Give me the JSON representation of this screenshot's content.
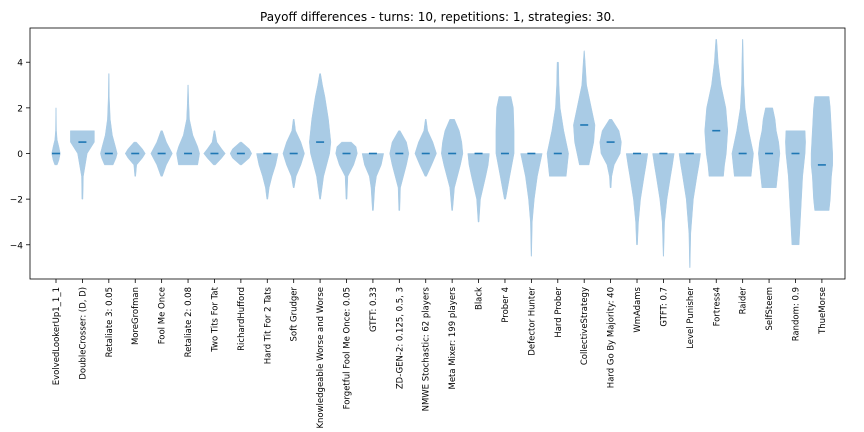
{
  "chart_data": {
    "type": "violin",
    "title": "Payoff differences - turns: 10, repetitions: 1, strategies: 30.",
    "xlabel": "",
    "ylabel": "",
    "ylim": [
      -5.5,
      5.5
    ],
    "yticks": [
      -4,
      -2,
      0,
      2,
      4
    ],
    "grid": false,
    "violin_color": "#a9cbe5",
    "median_color": "#1f77b4",
    "strategies": [
      {
        "label": "EvolvedLookerUp1_1_1",
        "median": 0,
        "min": -0.5,
        "max": 2,
        "profile": [
          [
            -0.5,
            0.05
          ],
          [
            -0.3,
            0.12
          ],
          [
            0,
            0.18
          ],
          [
            0.3,
            0.12
          ],
          [
            0.6,
            0.05
          ],
          [
            1.0,
            0.02
          ],
          [
            2,
            0.01
          ]
        ]
      },
      {
        "label": "DoubleCrosser: (D, D)",
        "median": 0.5,
        "min": -2,
        "max": 1,
        "profile": [
          [
            -2,
            0.02
          ],
          [
            -1,
            0.04
          ],
          [
            0,
            0.2
          ],
          [
            0.5,
            0.5
          ],
          [
            1,
            0.5
          ]
        ]
      },
      {
        "label": "Retaliate 3: 0.05",
        "median": 0,
        "min": -0.5,
        "max": 3.5,
        "profile": [
          [
            -0.5,
            0.18
          ],
          [
            -0.2,
            0.3
          ],
          [
            0,
            0.35
          ],
          [
            0.3,
            0.28
          ],
          [
            0.8,
            0.15
          ],
          [
            1.5,
            0.06
          ],
          [
            2.5,
            0.02
          ],
          [
            3.5,
            0.01
          ]
        ]
      },
      {
        "label": "MoreGrofman",
        "median": 0,
        "min": -1,
        "max": 0.5,
        "profile": [
          [
            -1,
            0.02
          ],
          [
            -0.5,
            0.06
          ],
          [
            -0.2,
            0.3
          ],
          [
            0,
            0.42
          ],
          [
            0.2,
            0.3
          ],
          [
            0.5,
            0.05
          ]
        ]
      },
      {
        "label": "Fool Me Once",
        "median": 0,
        "min": -1,
        "max": 1,
        "profile": [
          [
            -1,
            0.03
          ],
          [
            -0.5,
            0.2
          ],
          [
            0,
            0.45
          ],
          [
            0.5,
            0.2
          ],
          [
            1,
            0.03
          ]
        ]
      },
      {
        "label": "Retaliate 2: 0.08",
        "median": 0,
        "min": -0.5,
        "max": 3,
        "profile": [
          [
            -0.5,
            0.4
          ],
          [
            -0.2,
            0.45
          ],
          [
            0,
            0.48
          ],
          [
            0.3,
            0.4
          ],
          [
            0.8,
            0.2
          ],
          [
            1.5,
            0.06
          ],
          [
            2.2,
            0.03
          ],
          [
            3,
            0.01
          ]
        ]
      },
      {
        "label": "Two Tits For Tat",
        "median": 0,
        "min": -0.5,
        "max": 1,
        "profile": [
          [
            -0.5,
            0.04
          ],
          [
            -0.2,
            0.3
          ],
          [
            0,
            0.45
          ],
          [
            0.2,
            0.3
          ],
          [
            0.5,
            0.1
          ],
          [
            1,
            0.02
          ]
        ]
      },
      {
        "label": "RichardHufford",
        "median": 0,
        "min": -0.5,
        "max": 0.5,
        "profile": [
          [
            -0.5,
            0.03
          ],
          [
            -0.2,
            0.35
          ],
          [
            0,
            0.45
          ],
          [
            0.2,
            0.35
          ],
          [
            0.5,
            0.03
          ]
        ]
      },
      {
        "label": "Hard Tit For 2 Tats",
        "median": 0,
        "min": -2,
        "max": 0,
        "profile": [
          [
            -2,
            0.02
          ],
          [
            -1.5,
            0.08
          ],
          [
            -1,
            0.2
          ],
          [
            -0.5,
            0.35
          ],
          [
            0,
            0.45
          ]
        ]
      },
      {
        "label": "Soft Grudger",
        "median": 0,
        "min": -1.5,
        "max": 1.5,
        "profile": [
          [
            -1.5,
            0.02
          ],
          [
            -1,
            0.1
          ],
          [
            -0.5,
            0.3
          ],
          [
            0,
            0.45
          ],
          [
            0.5,
            0.3
          ],
          [
            1,
            0.08
          ],
          [
            1.5,
            0.02
          ]
        ]
      },
      {
        "label": "Knowledgeable Worse and Worse",
        "median": 0.5,
        "min": -2,
        "max": 3.5,
        "profile": [
          [
            -2,
            0.02
          ],
          [
            -1,
            0.15
          ],
          [
            0,
            0.4
          ],
          [
            0.5,
            0.45
          ],
          [
            1.5,
            0.35
          ],
          [
            2.5,
            0.2
          ],
          [
            3,
            0.1
          ],
          [
            3.5,
            0.02
          ]
        ]
      },
      {
        "label": "Forgetful Fool Me Once: 0.05",
        "median": 0,
        "min": -2,
        "max": 0.5,
        "profile": [
          [
            -2,
            0.02
          ],
          [
            -1,
            0.06
          ],
          [
            -0.5,
            0.3
          ],
          [
            0,
            0.45
          ],
          [
            0.3,
            0.4
          ],
          [
            0.5,
            0.2
          ]
        ]
      },
      {
        "label": "GTFT: 0.33",
        "median": 0,
        "min": -2.5,
        "max": 0,
        "profile": [
          [
            -2.5,
            0.02
          ],
          [
            -1.5,
            0.08
          ],
          [
            -1,
            0.15
          ],
          [
            -0.5,
            0.35
          ],
          [
            0,
            0.45
          ]
        ]
      },
      {
        "label": "ZD-GEN-2: 0.125, 0.5, 3",
        "median": 0,
        "min": -2.5,
        "max": 1,
        "profile": [
          [
            -2.5,
            0.02
          ],
          [
            -1.5,
            0.05
          ],
          [
            -0.5,
            0.3
          ],
          [
            0,
            0.4
          ],
          [
            0.5,
            0.3
          ],
          [
            1,
            0.03
          ]
        ]
      },
      {
        "label": "NMWE Stochastic: 62 players",
        "median": 0,
        "min": -1,
        "max": 1.5,
        "profile": [
          [
            -1,
            0.03
          ],
          [
            -0.5,
            0.25
          ],
          [
            0,
            0.45
          ],
          [
            0.5,
            0.3
          ],
          [
            1,
            0.08
          ],
          [
            1.5,
            0.02
          ]
        ]
      },
      {
        "label": "Meta Mixer: 199 players",
        "median": 0,
        "min": -2.5,
        "max": 1.5,
        "profile": [
          [
            -2.5,
            0.02
          ],
          [
            -1.5,
            0.1
          ],
          [
            -0.5,
            0.35
          ],
          [
            0,
            0.45
          ],
          [
            0.5,
            0.4
          ],
          [
            1,
            0.3
          ],
          [
            1.5,
            0.1
          ]
        ]
      },
      {
        "label": "Black",
        "median": 0,
        "min": -3,
        "max": 0,
        "profile": [
          [
            -3,
            0.02
          ],
          [
            -2,
            0.08
          ],
          [
            -1,
            0.3
          ],
          [
            -0.5,
            0.4
          ],
          [
            0,
            0.45
          ]
        ]
      },
      {
        "label": "Prober 4",
        "median": 0,
        "min": -2,
        "max": 2.5,
        "profile": [
          [
            -2,
            0.03
          ],
          [
            -1,
            0.2
          ],
          [
            0,
            0.38
          ],
          [
            1,
            0.38
          ],
          [
            2,
            0.35
          ],
          [
            2.5,
            0.25
          ]
        ]
      },
      {
        "label": "Defector Hunter",
        "median": 0,
        "min": -4.5,
        "max": 0,
        "profile": [
          [
            -4.5,
            0.01
          ],
          [
            -3,
            0.04
          ],
          [
            -2,
            0.12
          ],
          [
            -1,
            0.25
          ],
          [
            -0.5,
            0.35
          ],
          [
            0,
            0.45
          ]
        ]
      },
      {
        "label": "Hard Prober",
        "median": 0,
        "min": -1,
        "max": 4,
        "profile": [
          [
            -1,
            0.35
          ],
          [
            -0.5,
            0.4
          ],
          [
            0,
            0.45
          ],
          [
            0.5,
            0.35
          ],
          [
            1,
            0.25
          ],
          [
            2,
            0.1
          ],
          [
            3,
            0.05
          ],
          [
            4,
            0.03
          ]
        ]
      },
      {
        "label": "CollectiveStrategy",
        "median": 1.25,
        "min": -0.5,
        "max": 4.5,
        "profile": [
          [
            -0.5,
            0.2
          ],
          [
            0,
            0.3
          ],
          [
            0.5,
            0.4
          ],
          [
            1.25,
            0.45
          ],
          [
            2,
            0.3
          ],
          [
            3,
            0.1
          ],
          [
            4,
            0.04
          ],
          [
            4.5,
            0.01
          ]
        ]
      },
      {
        "label": "Hard Go By Majority: 40",
        "median": 0.5,
        "min": -1.5,
        "max": 1.5,
        "profile": [
          [
            -1.5,
            0.02
          ],
          [
            -1,
            0.05
          ],
          [
            -0.5,
            0.15
          ],
          [
            0,
            0.4
          ],
          [
            0.5,
            0.45
          ],
          [
            1,
            0.35
          ],
          [
            1.5,
            0.05
          ]
        ]
      },
      {
        "label": "WmAdams",
        "median": 0,
        "min": -4,
        "max": 0,
        "profile": [
          [
            -4,
            0.02
          ],
          [
            -3,
            0.06
          ],
          [
            -2,
            0.15
          ],
          [
            -1,
            0.3
          ],
          [
            -0.5,
            0.38
          ],
          [
            0,
            0.45
          ]
        ]
      },
      {
        "label": "GTFT: 0.7",
        "median": 0,
        "min": -4.5,
        "max": 0,
        "profile": [
          [
            -4.5,
            0.01
          ],
          [
            -3,
            0.05
          ],
          [
            -2,
            0.15
          ],
          [
            -1,
            0.3
          ],
          [
            -0.5,
            0.38
          ],
          [
            0,
            0.45
          ]
        ]
      },
      {
        "label": "Level Punisher",
        "median": 0,
        "min": -5,
        "max": 0,
        "profile": [
          [
            -5,
            0.01
          ],
          [
            -3.5,
            0.04
          ],
          [
            -2,
            0.15
          ],
          [
            -1,
            0.3
          ],
          [
            -0.5,
            0.38
          ],
          [
            0,
            0.45
          ]
        ]
      },
      {
        "label": "Fortress4",
        "median": 1,
        "min": -1,
        "max": 5,
        "profile": [
          [
            -1,
            0.3
          ],
          [
            -0.5,
            0.35
          ],
          [
            0,
            0.42
          ],
          [
            1,
            0.48
          ],
          [
            2,
            0.4
          ],
          [
            3,
            0.2
          ],
          [
            4,
            0.08
          ],
          [
            5,
            0.02
          ]
        ]
      },
      {
        "label": "Raider",
        "median": 0,
        "min": -1,
        "max": 5,
        "profile": [
          [
            -1,
            0.35
          ],
          [
            -0.5,
            0.4
          ],
          [
            0,
            0.45
          ],
          [
            0.5,
            0.35
          ],
          [
            1,
            0.25
          ],
          [
            2,
            0.1
          ],
          [
            3,
            0.05
          ],
          [
            4,
            0.03
          ],
          [
            5,
            0.01
          ]
        ]
      },
      {
        "label": "SelfSteem",
        "median": 0,
        "min": -1.5,
        "max": 2,
        "profile": [
          [
            -1.5,
            0.3
          ],
          [
            -1,
            0.35
          ],
          [
            -0.5,
            0.4
          ],
          [
            0,
            0.45
          ],
          [
            0.5,
            0.4
          ],
          [
            1,
            0.3
          ],
          [
            1.5,
            0.25
          ],
          [
            2,
            0.15
          ]
        ]
      },
      {
        "label": "Random: 0.9",
        "median": 0,
        "min": -4,
        "max": 1,
        "profile": [
          [
            -4,
            0.15
          ],
          [
            -3,
            0.2
          ],
          [
            -2,
            0.25
          ],
          [
            -1,
            0.3
          ],
          [
            0,
            0.4
          ],
          [
            0.5,
            0.42
          ],
          [
            1,
            0.4
          ]
        ]
      },
      {
        "label": "ThueMorse",
        "median": -0.5,
        "min": -2.5,
        "max": 2.5,
        "profile": [
          [
            -2.5,
            0.3
          ],
          [
            -2,
            0.35
          ],
          [
            -1,
            0.4
          ],
          [
            -0.5,
            0.45
          ],
          [
            0,
            0.45
          ],
          [
            1,
            0.4
          ],
          [
            2,
            0.35
          ],
          [
            2.5,
            0.3
          ]
        ]
      }
    ]
  }
}
